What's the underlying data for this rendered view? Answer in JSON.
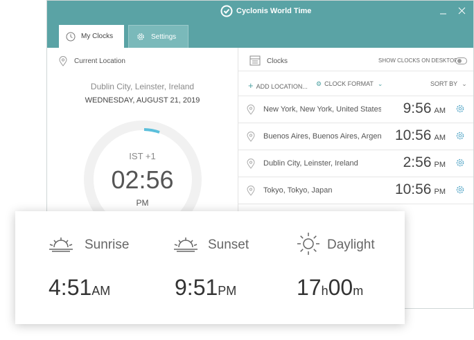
{
  "window": {
    "title": "Cyclonis World Time"
  },
  "tabs": [
    {
      "label": "My Clocks"
    },
    {
      "label": "Settings"
    }
  ],
  "current_location": {
    "heading": "Current Location",
    "place": "Dublin City, Leinster, Ireland",
    "date": "WEDNESDAY, AUGUST 21, 2019",
    "timezone": "IST +1",
    "time": "02:56",
    "period": "PM"
  },
  "clocks": {
    "heading": "Clocks",
    "toggle_label": "SHOW CLOCKS ON DESKTOP",
    "add": "ADD LOCATION...",
    "format": "CLOCK FORMAT",
    "sort": "SORT BY",
    "rows": [
      {
        "location": "New York, New York, United States",
        "time": "9:56",
        "period": "AM"
      },
      {
        "location": "Buenos Aires, Buenos Aires, Argen...",
        "time": "10:56",
        "period": "AM"
      },
      {
        "location": "Dublin City, Leinster, Ireland",
        "time": "2:56",
        "period": "PM"
      },
      {
        "location": "Tokyo, Tokyo, Japan",
        "time": "10:56",
        "period": "PM"
      }
    ]
  },
  "sun": {
    "sunrise": {
      "label": "Sunrise",
      "value": "4:51",
      "unit": "AM"
    },
    "sunset": {
      "label": "Sunset",
      "value": "9:51",
      "unit": "PM"
    },
    "daylight": {
      "label": "Daylight",
      "hours": "17",
      "hours_unit": "h",
      "minutes": "00",
      "minutes_unit": "m"
    }
  }
}
